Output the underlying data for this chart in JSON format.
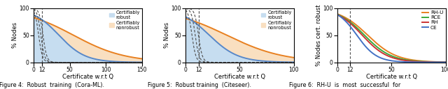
{
  "fig1": {
    "xlabel": "Certificate w.r.t Q",
    "ylabel": "% Nodes",
    "xlim": [
      0,
      150
    ],
    "ylim": [
      0,
      100
    ],
    "xticks": [
      0,
      12,
      50,
      100,
      150
    ],
    "vline": 12,
    "robust_color": "#c6ddf0",
    "nonrobust_color": "#f9dfc0",
    "blue_color": "#5588cc",
    "orange_color": "#e88020",
    "robust_steep": 0.055,
    "robust_shift": 35,
    "nonrobust_steep": 0.028,
    "nonrobust_shift": 55,
    "dashed_shifts": [
      7,
      10,
      13
    ],
    "dashed_steep": 0.38
  },
  "fig2": {
    "xlabel": "Certificate w.r.t Q",
    "ylabel": "% Nodes",
    "xlim": [
      0,
      100
    ],
    "ylim": [
      0,
      100
    ],
    "xticks": [
      0,
      12,
      50,
      100
    ],
    "vline": 12,
    "robust_color": "#c6ddf0",
    "nonrobust_color": "#f9dfc0",
    "blue_color": "#5588cc",
    "orange_color": "#e88020",
    "robust_steep": 0.075,
    "robust_shift": 22,
    "nonrobust_steep": 0.038,
    "nonrobust_shift": 38,
    "dashed_shifts": [
      6,
      9,
      12
    ],
    "dashed_steep": 0.55
  },
  "fig3": {
    "xlabel": "Certificate w.r.t Q",
    "ylabel": "% Nodes cert. robust",
    "xlim": [
      0,
      100
    ],
    "ylim": [
      0,
      100
    ],
    "xticks": [
      0,
      12,
      50,
      100
    ],
    "vline": 12,
    "lines": [
      {
        "label": "RH-U",
        "color": "#e88020",
        "steep": 0.075,
        "shift": 28
      },
      {
        "label": "RCE",
        "color": "#3aaa3a",
        "steep": 0.08,
        "shift": 25
      },
      {
        "label": "RH",
        "color": "#cc3333",
        "steep": 0.085,
        "shift": 23
      },
      {
        "label": "CE",
        "color": "#4472c4",
        "steep": 0.11,
        "shift": 18
      }
    ]
  },
  "legend_robust": "Certifiably\nrobust",
  "legend_nonrobust": "Certifiably\nnonrobust",
  "caption1": "Figure 4:  Robust  training  (Cora-ML).",
  "caption2": "Figure 5:  Robust training  (Citeseer).",
  "caption3": "Figure 6:  RH-U  is  most  successful  for"
}
